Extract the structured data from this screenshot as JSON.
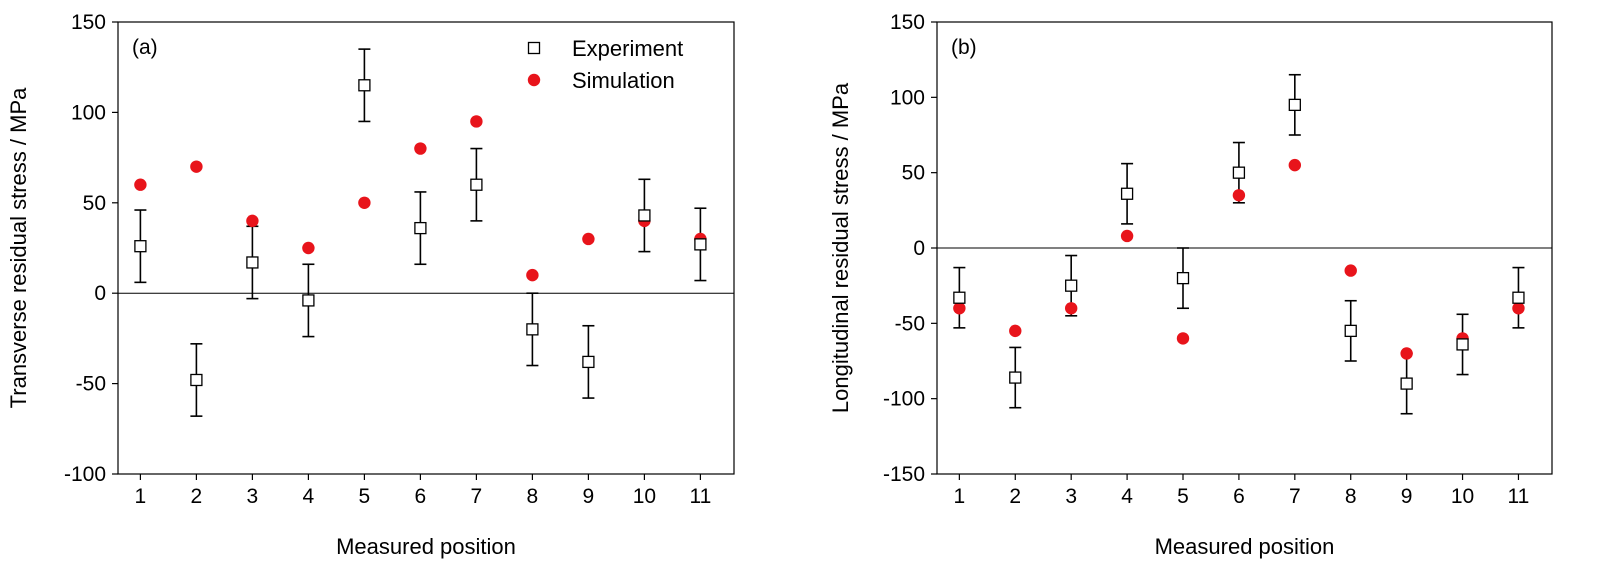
{
  "chart_data": [
    {
      "type": "scatter",
      "panel_label": "(a)",
      "xlabel": "Measured position",
      "ylabel": "Transverse residual stress / MPa",
      "xlim": [
        0.6,
        11.6
      ],
      "ylim": [
        -100,
        150
      ],
      "x_ticks": [
        1,
        2,
        3,
        4,
        5,
        6,
        7,
        8,
        9,
        10,
        11
      ],
      "y_ticks": [
        -100,
        -50,
        0,
        50,
        100,
        150
      ],
      "zero_line": true,
      "grid": false,
      "legend_position": "top-right",
      "series": [
        {
          "name": "Experiment",
          "marker": "open-square",
          "color": "#000000",
          "x": [
            1,
            2,
            3,
            4,
            5,
            6,
            7,
            8,
            9,
            10,
            11
          ],
          "y": [
            26,
            -48,
            17,
            -4,
            115,
            36,
            60,
            -20,
            -38,
            43,
            27
          ],
          "error": [
            20,
            20,
            20,
            20,
            20,
            20,
            20,
            20,
            20,
            20,
            20
          ]
        },
        {
          "name": "Simulation",
          "marker": "filled-circle",
          "color": "#e8141b",
          "x": [
            1,
            2,
            3,
            4,
            5,
            6,
            7,
            8,
            9,
            10,
            11
          ],
          "y": [
            60,
            70,
            40,
            25,
            50,
            80,
            95,
            10,
            30,
            40,
            30
          ]
        }
      ]
    },
    {
      "type": "scatter",
      "panel_label": "(b)",
      "xlabel": "Measured position",
      "ylabel": "Longitudinal residual stress / MPa",
      "xlim": [
        0.6,
        11.6
      ],
      "ylim": [
        -150,
        150
      ],
      "x_ticks": [
        1,
        2,
        3,
        4,
        5,
        6,
        7,
        8,
        9,
        10,
        11
      ],
      "y_ticks": [
        -150,
        -100,
        -50,
        0,
        50,
        100,
        150
      ],
      "zero_line": true,
      "grid": false,
      "series": [
        {
          "name": "Experiment",
          "marker": "open-square",
          "color": "#000000",
          "x": [
            1,
            2,
            3,
            4,
            5,
            6,
            7,
            8,
            9,
            10,
            11
          ],
          "y": [
            -33,
            -86,
            -25,
            36,
            -20,
            50,
            95,
            -55,
            -90,
            -64,
            -33
          ],
          "error": [
            20,
            20,
            20,
            20,
            20,
            20,
            20,
            20,
            20,
            20,
            20
          ]
        },
        {
          "name": "Simulation",
          "marker": "filled-circle",
          "color": "#e8141b",
          "x": [
            1,
            2,
            3,
            4,
            5,
            6,
            7,
            8,
            9,
            10,
            11
          ],
          "y": [
            -40,
            -55,
            -40,
            8,
            -60,
            35,
            55,
            -15,
            -70,
            -60,
            -40
          ]
        }
      ]
    }
  ]
}
